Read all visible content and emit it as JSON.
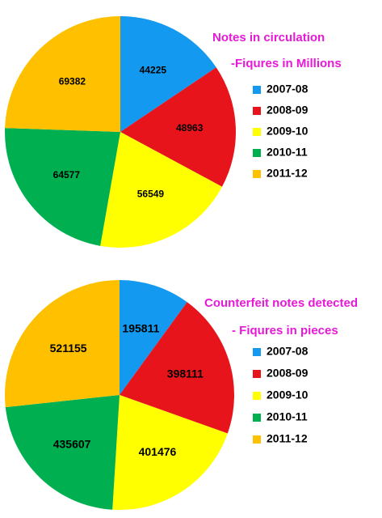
{
  "chart_data": [
    {
      "type": "pie",
      "title": "Notes in circulation",
      "subtitle": "-Fiqures in Millions",
      "categories": [
        "2007-08",
        "2008-09",
        "2009-10",
        "2010-11",
        "2011-12"
      ],
      "values": [
        44225,
        48963,
        56549,
        64577,
        69382
      ],
      "colors": [
        "#1399ef",
        "#e8141c",
        "#ffff00",
        "#00b050",
        "#ffc000"
      ],
      "title_color": "#e619d6"
    },
    {
      "type": "pie",
      "title": "Counterfeit notes detected",
      "subtitle": "- Fiqures in pieces",
      "categories": [
        "2007-08",
        "2008-09",
        "2009-10",
        "2010-11",
        "2011-12"
      ],
      "values": [
        195811,
        398111,
        401476,
        435607,
        521155
      ],
      "colors": [
        "#1399ef",
        "#e8141c",
        "#ffff00",
        "#00b050",
        "#ffc000"
      ],
      "title_color": "#e619d6"
    }
  ]
}
